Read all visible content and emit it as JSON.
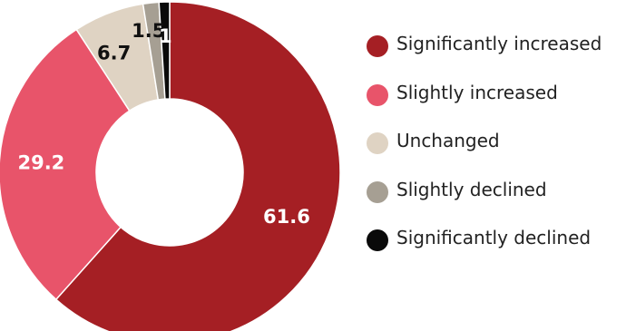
{
  "chart_data": {
    "type": "pie",
    "donut": true,
    "categories": [
      "Significantly increased",
      "Slightly increased",
      "Unchanged",
      "Slightly declined",
      "Significantly declined"
    ],
    "values": [
      61.6,
      29.2,
      6.7,
      1.5,
      1
    ],
    "value_labels": [
      "61.6",
      "29.2",
      "6.7",
      "1.5",
      "1"
    ],
    "colors": [
      "#a51f24",
      "#e8546a",
      "#dfd3c3",
      "#a69f93",
      "#0a0a0a"
    ],
    "label_colors": [
      "#ffffff",
      "#ffffff",
      "#111111",
      "#111111",
      "#ffffff"
    ],
    "legend_position": "right",
    "title": "",
    "xlabel": "",
    "ylabel": ""
  }
}
